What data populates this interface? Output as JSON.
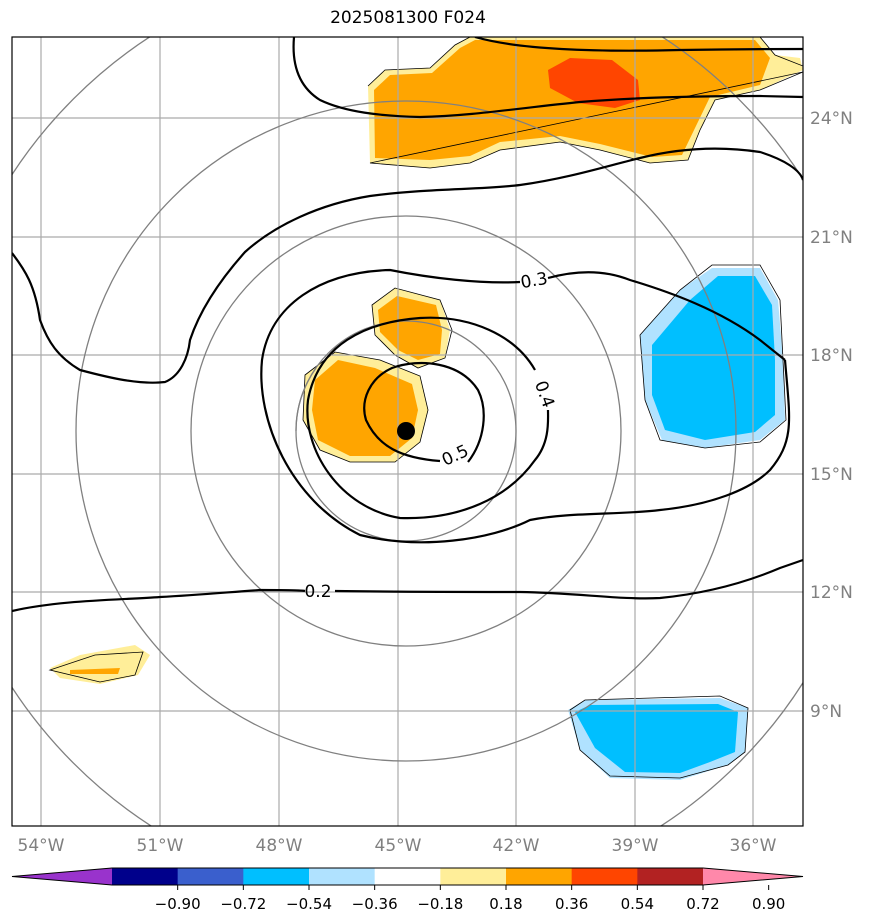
{
  "title": "2025081300 F024",
  "lon_labels": [
    "54°W",
    "51°W",
    "48°W",
    "45°W",
    "42°W",
    "39°W",
    "36°W"
  ],
  "lat_labels": [
    "24°N",
    "21°N",
    "18°N",
    "15°N",
    "12°N",
    "9°N"
  ],
  "contour_labels": [
    "0.2",
    "0.3",
    "0.4",
    "0.5"
  ],
  "colorbar": {
    "ticks": [
      "−0.90",
      "−0.72",
      "−0.54",
      "−0.36",
      "−0.18",
      "0.18",
      "0.36",
      "0.54",
      "0.72",
      "0.90"
    ],
    "colors": [
      "#9933cc",
      "#00008b",
      "#3a5fcd",
      "#00bfff",
      "#b0e2ff",
      "#ffffff",
      "#ffee99",
      "#ffa500",
      "#ff4500",
      "#b22222",
      "#ff88aa"
    ]
  },
  "center_marker": "storm-center",
  "colors": {
    "grid": "#aaaaaa",
    "range_rings": "#808080",
    "contour": "#000000",
    "axis_text": "#808080"
  }
}
